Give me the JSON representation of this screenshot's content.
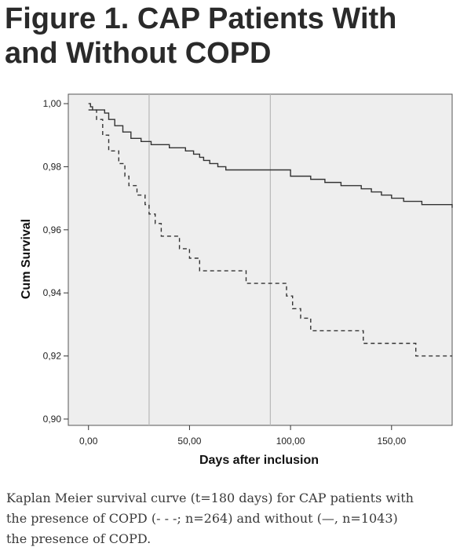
{
  "figure": {
    "title_line1": "Figure 1. CAP Patients With",
    "title_line2": "and Without COPD"
  },
  "caption": {
    "line1": "Kaplan Meier survival curve (t=180 days) for CAP patients with",
    "line2": "the presence of COPD (- - -; n=264)  and without (—, n=1043)",
    "line3": "the presence of COPD."
  },
  "colors": {
    "plot_background": "#eeeeee",
    "curve": "#333333",
    "reference_line": "#b8b8b8",
    "title": "#2a2a2a",
    "caption": "#3a3a3a"
  },
  "chart_data": {
    "type": "line",
    "title": "",
    "xlabel": "Days after inclusion",
    "ylabel": "Cum Survival",
    "xlim": [
      -10,
      180
    ],
    "ylim": [
      0.898,
      1.003
    ],
    "x_ticks": [
      0,
      50,
      100,
      150
    ],
    "x_tick_labels": [
      "0,00",
      "50,00",
      "100,00",
      "150,00"
    ],
    "y_ticks": [
      0.9,
      0.92,
      0.94,
      0.96,
      0.98,
      1.0
    ],
    "y_tick_labels": [
      "0,90",
      "0,92",
      "0,94",
      "0,96",
      "0,98",
      "1,00"
    ],
    "reference_lines_x": [
      30,
      90
    ],
    "grid": false,
    "legend": "none",
    "series": [
      {
        "style": "solid",
        "points": [
          [
            0,
            1.0
          ],
          [
            1,
            0.999
          ],
          [
            2,
            0.998
          ],
          [
            6,
            0.998
          ],
          [
            8,
            0.997
          ],
          [
            10,
            0.995
          ],
          [
            13,
            0.993
          ],
          [
            17,
            0.991
          ],
          [
            21,
            0.989
          ],
          [
            26,
            0.988
          ],
          [
            31,
            0.987
          ],
          [
            40,
            0.986
          ],
          [
            48,
            0.985
          ],
          [
            52,
            0.984
          ],
          [
            55,
            0.983
          ],
          [
            57,
            0.982
          ],
          [
            60,
            0.981
          ],
          [
            64,
            0.98
          ],
          [
            68,
            0.979
          ],
          [
            80,
            0.979
          ],
          [
            95,
            0.979
          ],
          [
            100,
            0.977
          ],
          [
            110,
            0.976
          ],
          [
            117,
            0.975
          ],
          [
            125,
            0.974
          ],
          [
            135,
            0.973
          ],
          [
            140,
            0.972
          ],
          [
            145,
            0.971
          ],
          [
            150,
            0.97
          ],
          [
            156,
            0.969
          ],
          [
            165,
            0.968
          ],
          [
            180,
            0.967
          ]
        ]
      },
      {
        "style": "dashed",
        "points": [
          [
            0,
            0.998
          ],
          [
            4,
            0.995
          ],
          [
            7,
            0.99
          ],
          [
            10,
            0.985
          ],
          [
            15,
            0.981
          ],
          [
            18,
            0.977
          ],
          [
            20,
            0.974
          ],
          [
            24,
            0.971
          ],
          [
            28,
            0.968
          ],
          [
            30,
            0.965
          ],
          [
            33,
            0.962
          ],
          [
            36,
            0.958
          ],
          [
            42,
            0.958
          ],
          [
            45,
            0.954
          ],
          [
            50,
            0.951
          ],
          [
            55,
            0.947
          ],
          [
            77,
            0.947
          ],
          [
            78,
            0.943
          ],
          [
            95,
            0.943
          ],
          [
            98,
            0.939
          ],
          [
            101,
            0.935
          ],
          [
            105,
            0.932
          ],
          [
            110,
            0.928
          ],
          [
            135,
            0.928
          ],
          [
            136,
            0.924
          ],
          [
            160,
            0.924
          ],
          [
            162,
            0.92
          ],
          [
            180,
            0.92
          ]
        ]
      }
    ]
  }
}
